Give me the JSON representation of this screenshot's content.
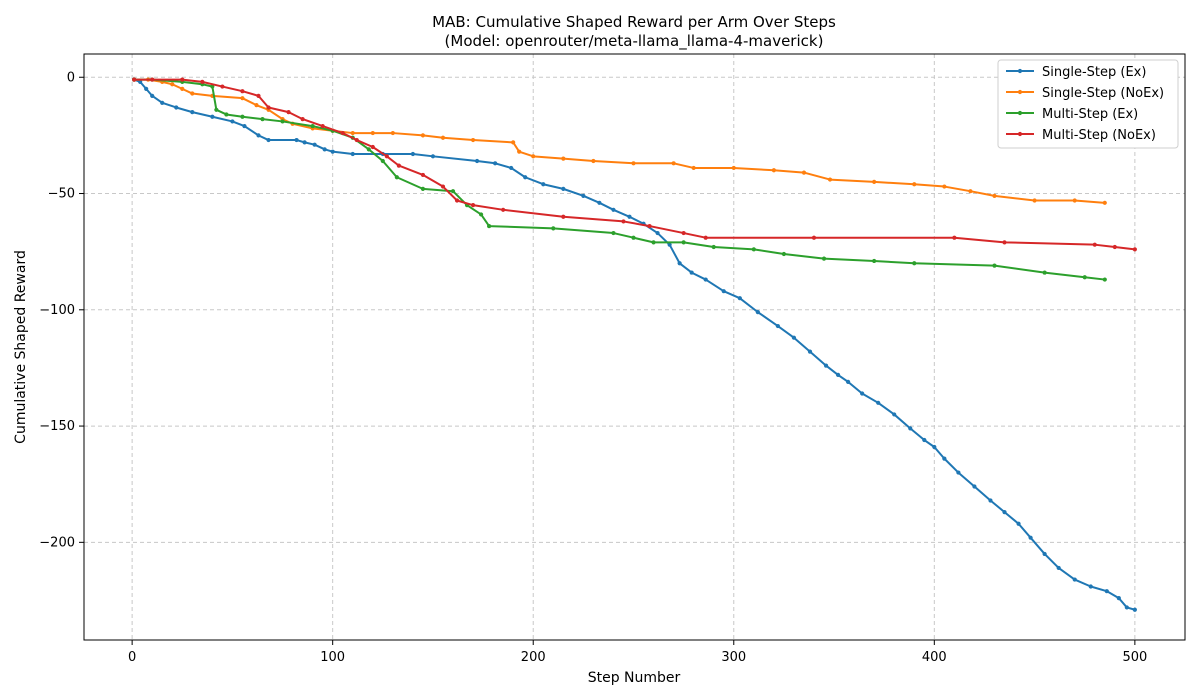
{
  "chart_data": {
    "type": "line",
    "title": "MAB: Cumulative Shaped Reward per Arm Over Steps",
    "subtitle": "(Model: openrouter/meta-llama_llama-4-maverick)",
    "xlabel": "Step Number",
    "ylabel": "Cumulative Shaped Reward",
    "xlim": [
      -24,
      525
    ],
    "ylim": [
      -242,
      10
    ],
    "xticks": [
      0,
      100,
      200,
      300,
      400,
      500
    ],
    "yticks": [
      0,
      -50,
      -100,
      -150,
      -200
    ],
    "xtick_labels": [
      "0",
      "100",
      "200",
      "300",
      "400",
      "500"
    ],
    "ytick_labels": [
      "0",
      "−50",
      "−100",
      "−150",
      "−200"
    ],
    "grid": true,
    "legend_position": "top-right",
    "series": [
      {
        "name": "Single-Step (Ex)",
        "color": "#1f77b4",
        "points": [
          [
            1,
            -1
          ],
          [
            4,
            -2
          ],
          [
            7,
            -5
          ],
          [
            10,
            -8
          ],
          [
            15,
            -11
          ],
          [
            22,
            -13
          ],
          [
            30,
            -15
          ],
          [
            40,
            -17
          ],
          [
            50,
            -19
          ],
          [
            56,
            -21
          ],
          [
            63,
            -25
          ],
          [
            68,
            -27
          ],
          [
            82,
            -27
          ],
          [
            86,
            -28
          ],
          [
            91,
            -29
          ],
          [
            96,
            -31
          ],
          [
            100,
            -32
          ],
          [
            110,
            -33
          ],
          [
            125,
            -33
          ],
          [
            140,
            -33
          ],
          [
            150,
            -34
          ],
          [
            172,
            -36
          ],
          [
            181,
            -37
          ],
          [
            189,
            -39
          ],
          [
            196,
            -43
          ],
          [
            205,
            -46
          ],
          [
            215,
            -48
          ],
          [
            225,
            -51
          ],
          [
            233,
            -54
          ],
          [
            240,
            -57
          ],
          [
            248,
            -60
          ],
          [
            255,
            -63
          ],
          [
            262,
            -67
          ],
          [
            268,
            -72
          ],
          [
            273,
            -80
          ],
          [
            279,
            -84
          ],
          [
            286,
            -87
          ],
          [
            295,
            -92
          ],
          [
            303,
            -95
          ],
          [
            312,
            -101
          ],
          [
            322,
            -107
          ],
          [
            330,
            -112
          ],
          [
            338,
            -118
          ],
          [
            346,
            -124
          ],
          [
            352,
            -128
          ],
          [
            357,
            -131
          ],
          [
            364,
            -136
          ],
          [
            372,
            -140
          ],
          [
            380,
            -145
          ],
          [
            388,
            -151
          ],
          [
            395,
            -156
          ],
          [
            400,
            -159
          ],
          [
            405,
            -164
          ],
          [
            412,
            -170
          ],
          [
            420,
            -176
          ],
          [
            428,
            -182
          ],
          [
            435,
            -187
          ],
          [
            442,
            -192
          ],
          [
            448,
            -198
          ],
          [
            455,
            -205
          ],
          [
            462,
            -211
          ],
          [
            470,
            -216
          ],
          [
            478,
            -219
          ],
          [
            486,
            -221
          ],
          [
            492,
            -224
          ],
          [
            496,
            -228
          ],
          [
            500,
            -229
          ]
        ]
      },
      {
        "name": "Single-Step (NoEx)",
        "color": "#ff7f0e",
        "points": [
          [
            1,
            -1
          ],
          [
            8,
            -1
          ],
          [
            15,
            -2
          ],
          [
            20,
            -3
          ],
          [
            25,
            -5
          ],
          [
            30,
            -7
          ],
          [
            40,
            -8
          ],
          [
            55,
            -9
          ],
          [
            62,
            -12
          ],
          [
            68,
            -14
          ],
          [
            75,
            -18
          ],
          [
            80,
            -20
          ],
          [
            90,
            -22
          ],
          [
            100,
            -23
          ],
          [
            110,
            -24
          ],
          [
            120,
            -24
          ],
          [
            130,
            -24
          ],
          [
            145,
            -25
          ],
          [
            155,
            -26
          ],
          [
            170,
            -27
          ],
          [
            190,
            -28
          ],
          [
            193,
            -32
          ],
          [
            200,
            -34
          ],
          [
            215,
            -35
          ],
          [
            230,
            -36
          ],
          [
            250,
            -37
          ],
          [
            270,
            -37
          ],
          [
            280,
            -39
          ],
          [
            300,
            -39
          ],
          [
            320,
            -40
          ],
          [
            335,
            -41
          ],
          [
            348,
            -44
          ],
          [
            370,
            -45
          ],
          [
            390,
            -46
          ],
          [
            405,
            -47
          ],
          [
            418,
            -49
          ],
          [
            430,
            -51
          ],
          [
            450,
            -53
          ],
          [
            470,
            -53
          ],
          [
            485,
            -54
          ]
        ]
      },
      {
        "name": "Multi-Step (Ex)",
        "color": "#2ca02c",
        "points": [
          [
            1,
            -1
          ],
          [
            10,
            -1
          ],
          [
            25,
            -2
          ],
          [
            35,
            -3
          ],
          [
            40,
            -4
          ],
          [
            42,
            -14
          ],
          [
            47,
            -16
          ],
          [
            55,
            -17
          ],
          [
            65,
            -18
          ],
          [
            75,
            -19
          ],
          [
            90,
            -21
          ],
          [
            100,
            -23
          ],
          [
            110,
            -26
          ],
          [
            118,
            -31
          ],
          [
            125,
            -36
          ],
          [
            132,
            -43
          ],
          [
            145,
            -48
          ],
          [
            160,
            -49
          ],
          [
            167,
            -55
          ],
          [
            174,
            -59
          ],
          [
            178,
            -64
          ],
          [
            210,
            -65
          ],
          [
            240,
            -67
          ],
          [
            250,
            -69
          ],
          [
            260,
            -71
          ],
          [
            275,
            -71
          ],
          [
            290,
            -73
          ],
          [
            310,
            -74
          ],
          [
            325,
            -76
          ],
          [
            345,
            -78
          ],
          [
            370,
            -79
          ],
          [
            390,
            -80
          ],
          [
            430,
            -81
          ],
          [
            455,
            -84
          ],
          [
            475,
            -86
          ],
          [
            485,
            -87
          ]
        ]
      },
      {
        "name": "Multi-Step (NoEx)",
        "color": "#d62728",
        "points": [
          [
            1,
            -1
          ],
          [
            10,
            -1
          ],
          [
            25,
            -1
          ],
          [
            35,
            -2
          ],
          [
            45,
            -4
          ],
          [
            55,
            -6
          ],
          [
            63,
            -8
          ],
          [
            68,
            -13
          ],
          [
            78,
            -15
          ],
          [
            85,
            -18
          ],
          [
            95,
            -21
          ],
          [
            105,
            -24
          ],
          [
            112,
            -27
          ],
          [
            120,
            -30
          ],
          [
            127,
            -34
          ],
          [
            133,
            -38
          ],
          [
            145,
            -42
          ],
          [
            155,
            -47
          ],
          [
            162,
            -53
          ],
          [
            170,
            -55
          ],
          [
            185,
            -57
          ],
          [
            215,
            -60
          ],
          [
            245,
            -62
          ],
          [
            258,
            -64
          ],
          [
            275,
            -67
          ],
          [
            286,
            -69
          ],
          [
            340,
            -69
          ],
          [
            410,
            -69
          ],
          [
            435,
            -71
          ],
          [
            480,
            -72
          ],
          [
            490,
            -73
          ],
          [
            500,
            -74
          ]
        ]
      }
    ]
  }
}
